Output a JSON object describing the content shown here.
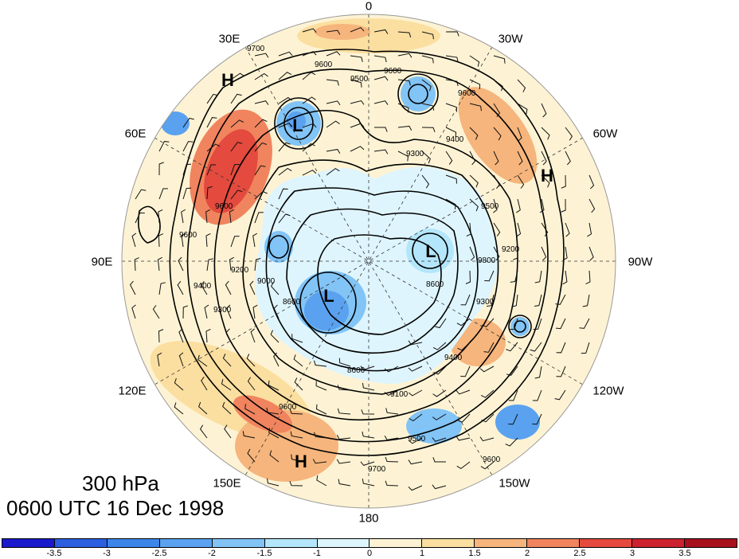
{
  "map": {
    "projection": "north polar stereographic",
    "longitude_labels": [
      {
        "id": "0",
        "text": "0"
      },
      {
        "id": "30w",
        "text": "30W"
      },
      {
        "id": "60w",
        "text": "60W"
      },
      {
        "id": "90w",
        "text": "90W"
      },
      {
        "id": "120w",
        "text": "120W"
      },
      {
        "id": "150w",
        "text": "150W"
      },
      {
        "id": "180",
        "text": "180"
      },
      {
        "id": "150e",
        "text": "150E"
      },
      {
        "id": "120e",
        "text": "120E"
      },
      {
        "id": "90e",
        "text": "90E"
      },
      {
        "id": "60e",
        "text": "60E"
      },
      {
        "id": "30e",
        "text": "30E"
      }
    ],
    "pressure_centers": [
      {
        "id": "h-europe",
        "text": "H"
      },
      {
        "id": "l-scandinavia",
        "text": "L"
      },
      {
        "id": "h-atlantic",
        "text": "H"
      },
      {
        "id": "l-canada",
        "text": "L"
      },
      {
        "id": "l-siberia",
        "text": "L"
      },
      {
        "id": "h-pacific",
        "text": "H"
      }
    ],
    "contour_labels": [
      "9700",
      "9600",
      "9500",
      "9600",
      "9600",
      "9400",
      "9300",
      "9600",
      "9600",
      "9200",
      "9400",
      "9500",
      "9800",
      "9300",
      "9200",
      "8600",
      "8600",
      "9100",
      "9600",
      "9500",
      "9700",
      "9600",
      "9400",
      "9300",
      "9000",
      "8600"
    ]
  },
  "title": {
    "level": "300 hPa",
    "time": "0600 UTC 16 Dec 1998"
  },
  "colorbar": {
    "labels": [
      "-3.5",
      "-3",
      "-2.5",
      "-2",
      "-1.5",
      "-1",
      "0",
      "1",
      "1.5",
      "2",
      "2.5",
      "3",
      "3.5"
    ],
    "colors": [
      "#1a1acc",
      "#2b5fe0",
      "#3c86ea",
      "#5aa2f0",
      "#82c4f6",
      "#b4e6fb",
      "#dff5fd",
      "#fdf3d4",
      "#fbdfa0",
      "#f6b57c",
      "#f0845e",
      "#e44a3e",
      "#cc2230",
      "#a8101e"
    ]
  }
}
